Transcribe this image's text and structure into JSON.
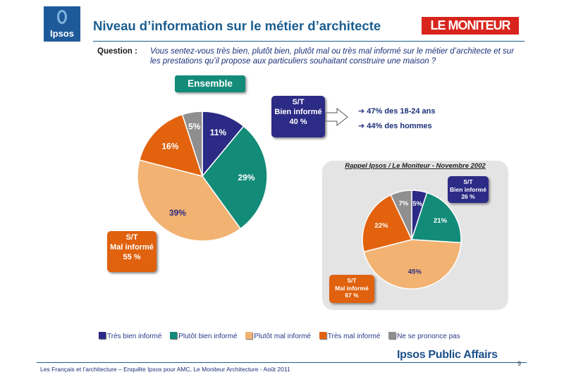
{
  "logo_ipsos": "Ipsos",
  "logo_moniteur": "LE MONITEUR",
  "title": "Niveau d’information sur le métier d’architecte",
  "question": {
    "label": "Question :",
    "text": "Vous sentez-vous très bien, plutôt bien, plutôt mal ou très mal informé sur le métier d’architecte et sur les prestations qu’il propose aux particuliers souhaitant construire une maison ?"
  },
  "ensemble_label": "Ensemble",
  "main_box_bien": {
    "line1": "S/T",
    "line2": "Bien informé",
    "value": "40 %"
  },
  "main_box_mal": {
    "line1": "S/T",
    "line2": "Mal informé",
    "value": "55 %"
  },
  "callouts": [
    "47% des 18-24 ans",
    "44% des hommes"
  ],
  "inset_title": "Rappel Ipsos / Le Moniteur - Novembre 2002",
  "inset_box_bien": {
    "line1": "S/T",
    "line2": "Bien informé",
    "value": "26 %"
  },
  "inset_box_mal": {
    "line1": "S/T",
    "line2": "Mal informé",
    "value": "67 %"
  },
  "colors": {
    "tres_bien": "#2b2a85",
    "plutot_bien": "#138b79",
    "plutot_mal": "#f2b272",
    "tres_mal": "#e2620d",
    "nsp": "#8f8f8f"
  },
  "chart_data": [
    {
      "type": "pie",
      "title": "Ensemble",
      "categories": [
        "Très bien informé",
        "Plutôt bien informé",
        "Plutôt mal informé",
        "Très mal informé",
        "Ne se prononce pas"
      ],
      "values": [
        11,
        29,
        39,
        16,
        5
      ],
      "labels": [
        "11%",
        "29%",
        "39%",
        "16%",
        "5%"
      ]
    },
    {
      "type": "pie",
      "title": "Rappel Ipsos / Le Moniteur - Novembre 2002",
      "categories": [
        "Très bien informé",
        "Plutôt bien informé",
        "Plutôt mal informé",
        "Très mal informé",
        "Ne se prononce pas"
      ],
      "values": [
        5,
        21,
        45,
        22,
        7
      ],
      "labels": [
        "5%",
        "21%",
        "45%",
        "22%",
        "7%"
      ]
    }
  ],
  "legend": [
    "Très bien informé",
    "Plutôt bien informé",
    "Plutôt mal informé",
    "Très mal informé",
    "Ne se prononce pas"
  ],
  "brand_footer": "Ipsos Public Affairs",
  "page_number": "9",
  "footer_text": "Les Français et l’architecture – Enquête Ipsos pour AMC, Le Moniteur Architecture - Août 2011"
}
